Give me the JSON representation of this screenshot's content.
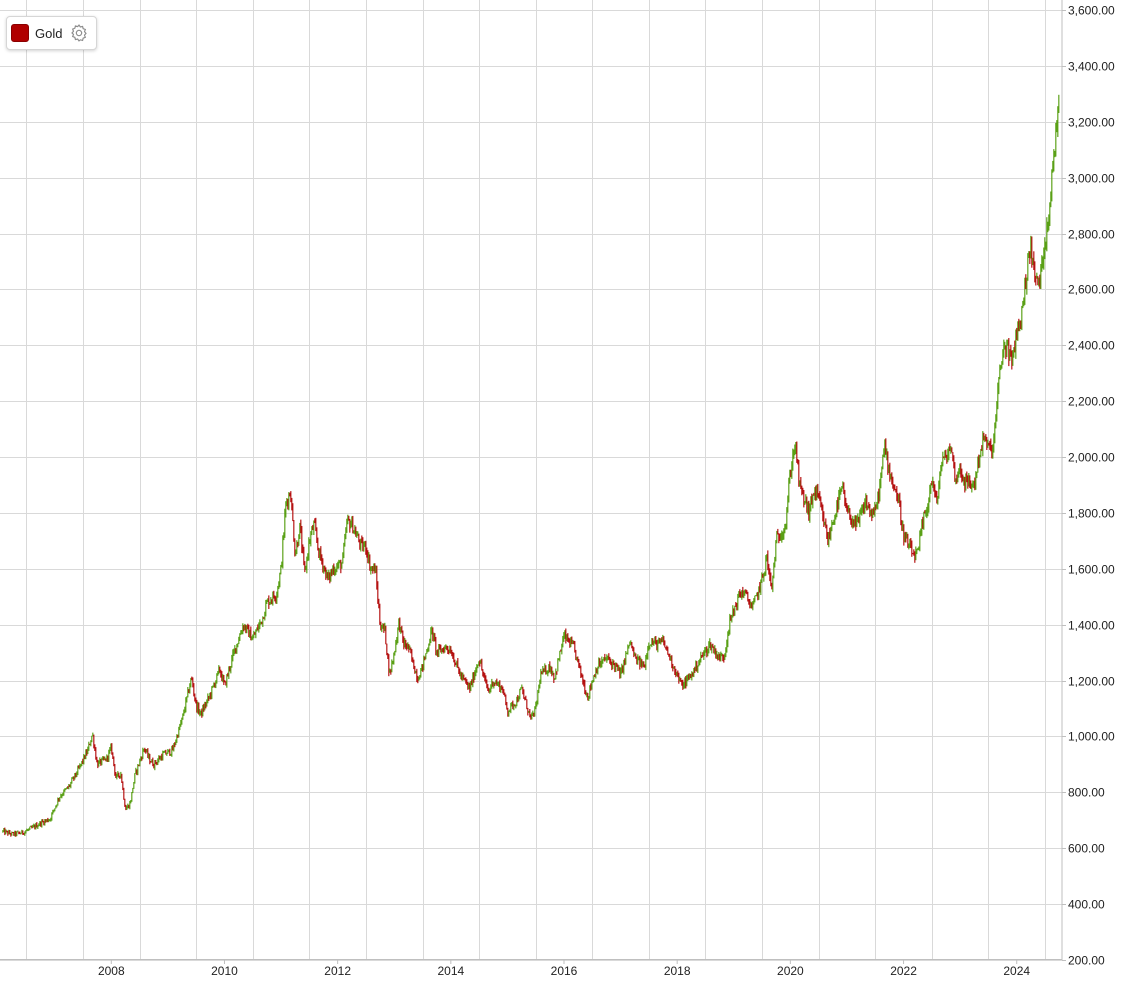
{
  "legend": {
    "series_label": "Gold",
    "swatch_color": "#b00000",
    "settings_icon": "gear-icon"
  },
  "colors": {
    "up": "#4e9a06",
    "down": "#b00000",
    "grid": "#d9d9d9"
  },
  "chart_data": {
    "type": "candlestick",
    "series": [
      {
        "name": "Gold",
        "color": "#b00000"
      }
    ],
    "y_axis": {
      "position": "right",
      "min": 200,
      "max": 3600,
      "step": 200,
      "label_format": "0,000.00"
    },
    "x_axis": {
      "range": [
        "2006-08",
        "2025-04"
      ],
      "tick_labels": [
        "2008",
        "2010",
        "2012",
        "2014",
        "2016",
        "2018",
        "2020",
        "2022",
        "2024"
      ]
    },
    "grid": true,
    "values": [
      [
        "2006-08",
        660
      ],
      [
        "2006-10",
        650
      ],
      [
        "2006-12",
        655
      ],
      [
        "2007-02",
        670
      ],
      [
        "2007-04",
        690
      ],
      [
        "2007-06",
        705
      ],
      [
        "2007-08",
        785
      ],
      [
        "2007-10",
        820
      ],
      [
        "2007-12",
        880
      ],
      [
        "2008-02",
        950
      ],
      [
        "2008-03",
        1010
      ],
      [
        "2008-04",
        900
      ],
      [
        "2008-06",
        920
      ],
      [
        "2008-07",
        960
      ],
      [
        "2008-08",
        850
      ],
      [
        "2008-09",
        870
      ],
      [
        "2008-10",
        740
      ],
      [
        "2008-11",
        760
      ],
      [
        "2008-12",
        860
      ],
      [
        "2009-02",
        960
      ],
      [
        "2009-03",
        920
      ],
      [
        "2009-04",
        900
      ],
      [
        "2009-06",
        935
      ],
      [
        "2009-08",
        950
      ],
      [
        "2009-10",
        1060
      ],
      [
        "2009-12",
        1210
      ],
      [
        "2010-01",
        1110
      ],
      [
        "2010-02",
        1080
      ],
      [
        "2010-04",
        1150
      ],
      [
        "2010-06",
        1240
      ],
      [
        "2010-07",
        1180
      ],
      [
        "2010-09",
        1300
      ],
      [
        "2010-11",
        1400
      ],
      [
        "2011-01",
        1350
      ],
      [
        "2011-03",
        1420
      ],
      [
        "2011-04",
        1480
      ],
      [
        "2011-06",
        1510
      ],
      [
        "2011-07",
        1600
      ],
      [
        "2011-08",
        1830
      ],
      [
        "2011-09",
        1880
      ],
      [
        "2011-10",
        1650
      ],
      [
        "2011-11",
        1750
      ],
      [
        "2011-12",
        1580
      ],
      [
        "2012-01",
        1700
      ],
      [
        "2012-02",
        1760
      ],
      [
        "2012-03",
        1660
      ],
      [
        "2012-05",
        1560
      ],
      [
        "2012-06",
        1600
      ],
      [
        "2012-08",
        1620
      ],
      [
        "2012-09",
        1770
      ],
      [
        "2012-10",
        1760
      ],
      [
        "2012-11",
        1720
      ],
      [
        "2012-12",
        1680
      ],
      [
        "2013-01",
        1680
      ],
      [
        "2013-02",
        1600
      ],
      [
        "2013-03",
        1600
      ],
      [
        "2013-04",
        1400
      ],
      [
        "2013-05",
        1380
      ],
      [
        "2013-06",
        1220
      ],
      [
        "2013-07",
        1300
      ],
      [
        "2013-08",
        1410
      ],
      [
        "2013-09",
        1330
      ],
      [
        "2013-10",
        1320
      ],
      [
        "2013-11",
        1260
      ],
      [
        "2013-12",
        1210
      ],
      [
        "2014-01",
        1250
      ],
      [
        "2014-03",
        1380
      ],
      [
        "2014-04",
        1300
      ],
      [
        "2014-06",
        1320
      ],
      [
        "2014-07",
        1310
      ],
      [
        "2014-09",
        1220
      ],
      [
        "2014-11",
        1170
      ],
      [
        "2015-01",
        1280
      ],
      [
        "2015-02",
        1210
      ],
      [
        "2015-03",
        1160
      ],
      [
        "2015-04",
        1200
      ],
      [
        "2015-06",
        1170
      ],
      [
        "2015-07",
        1090
      ],
      [
        "2015-09",
        1130
      ],
      [
        "2015-10",
        1170
      ],
      [
        "2015-12",
        1060
      ],
      [
        "2016-01",
        1100
      ],
      [
        "2016-02",
        1220
      ],
      [
        "2016-04",
        1250
      ],
      [
        "2016-05",
        1210
      ],
      [
        "2016-07",
        1360
      ],
      [
        "2016-08",
        1340
      ],
      [
        "2016-09",
        1320
      ],
      [
        "2016-10",
        1260
      ],
      [
        "2016-12",
        1140
      ],
      [
        "2017-01",
        1200
      ],
      [
        "2017-02",
        1250
      ],
      [
        "2017-04",
        1280
      ],
      [
        "2017-06",
        1250
      ],
      [
        "2017-07",
        1220
      ],
      [
        "2017-09",
        1340
      ],
      [
        "2017-10",
        1280
      ],
      [
        "2017-12",
        1250
      ],
      [
        "2018-01",
        1340
      ],
      [
        "2018-03",
        1330
      ],
      [
        "2018-04",
        1340
      ],
      [
        "2018-05",
        1300
      ],
      [
        "2018-06",
        1260
      ],
      [
        "2018-08",
        1180
      ],
      [
        "2018-10",
        1220
      ],
      [
        "2018-12",
        1280
      ],
      [
        "2019-02",
        1330
      ],
      [
        "2019-04",
        1280
      ],
      [
        "2019-05",
        1290
      ],
      [
        "2019-06",
        1400
      ],
      [
        "2019-08",
        1500
      ],
      [
        "2019-09",
        1520
      ],
      [
        "2019-11",
        1460
      ],
      [
        "2019-12",
        1510
      ],
      [
        "2020-01",
        1560
      ],
      [
        "2020-02",
        1640
      ],
      [
        "2020-03",
        1520
      ],
      [
        "2020-04",
        1700
      ],
      [
        "2020-06",
        1760
      ],
      [
        "2020-07",
        1950
      ],
      [
        "2020-08",
        2050
      ],
      [
        "2020-09",
        1890
      ],
      [
        "2020-11",
        1800
      ],
      [
        "2020-12",
        1880
      ],
      [
        "2021-01",
        1850
      ],
      [
        "2021-03",
        1700
      ],
      [
        "2021-04",
        1770
      ],
      [
        "2021-06",
        1890
      ],
      [
        "2021-07",
        1800
      ],
      [
        "2021-08",
        1780
      ],
      [
        "2021-09",
        1750
      ],
      [
        "2021-11",
        1840
      ],
      [
        "2021-12",
        1800
      ],
      [
        "2022-01",
        1800
      ],
      [
        "2022-02",
        1900
      ],
      [
        "2022-03",
        2040
      ],
      [
        "2022-04",
        1950
      ],
      [
        "2022-06",
        1840
      ],
      [
        "2022-07",
        1720
      ],
      [
        "2022-09",
        1650
      ],
      [
        "2022-10",
        1650
      ],
      [
        "2022-11",
        1760
      ],
      [
        "2022-12",
        1820
      ],
      [
        "2023-01",
        1920
      ],
      [
        "2023-02",
        1830
      ],
      [
        "2023-03",
        1980
      ],
      [
        "2023-04",
        2000
      ],
      [
        "2023-05",
        2040
      ],
      [
        "2023-06",
        1920
      ],
      [
        "2023-07",
        1960
      ],
      [
        "2023-08",
        1910
      ],
      [
        "2023-10",
        1900
      ],
      [
        "2023-11",
        2000
      ],
      [
        "2023-12",
        2070
      ],
      [
        "2024-01",
        2030
      ],
      [
        "2024-02",
        2030
      ],
      [
        "2024-03",
        2230
      ],
      [
        "2024-04",
        2380
      ],
      [
        "2024-05",
        2400
      ],
      [
        "2024-06",
        2330
      ],
      [
        "2024-07",
        2450
      ],
      [
        "2024-08",
        2500
      ],
      [
        "2024-09",
        2650
      ],
      [
        "2024-10",
        2760
      ],
      [
        "2024-11",
        2620
      ],
      [
        "2024-12",
        2640
      ],
      [
        "2025-01",
        2780
      ],
      [
        "2025-02",
        2900
      ],
      [
        "2025-03",
        3100
      ],
      [
        "2025-04",
        3300
      ]
    ]
  }
}
